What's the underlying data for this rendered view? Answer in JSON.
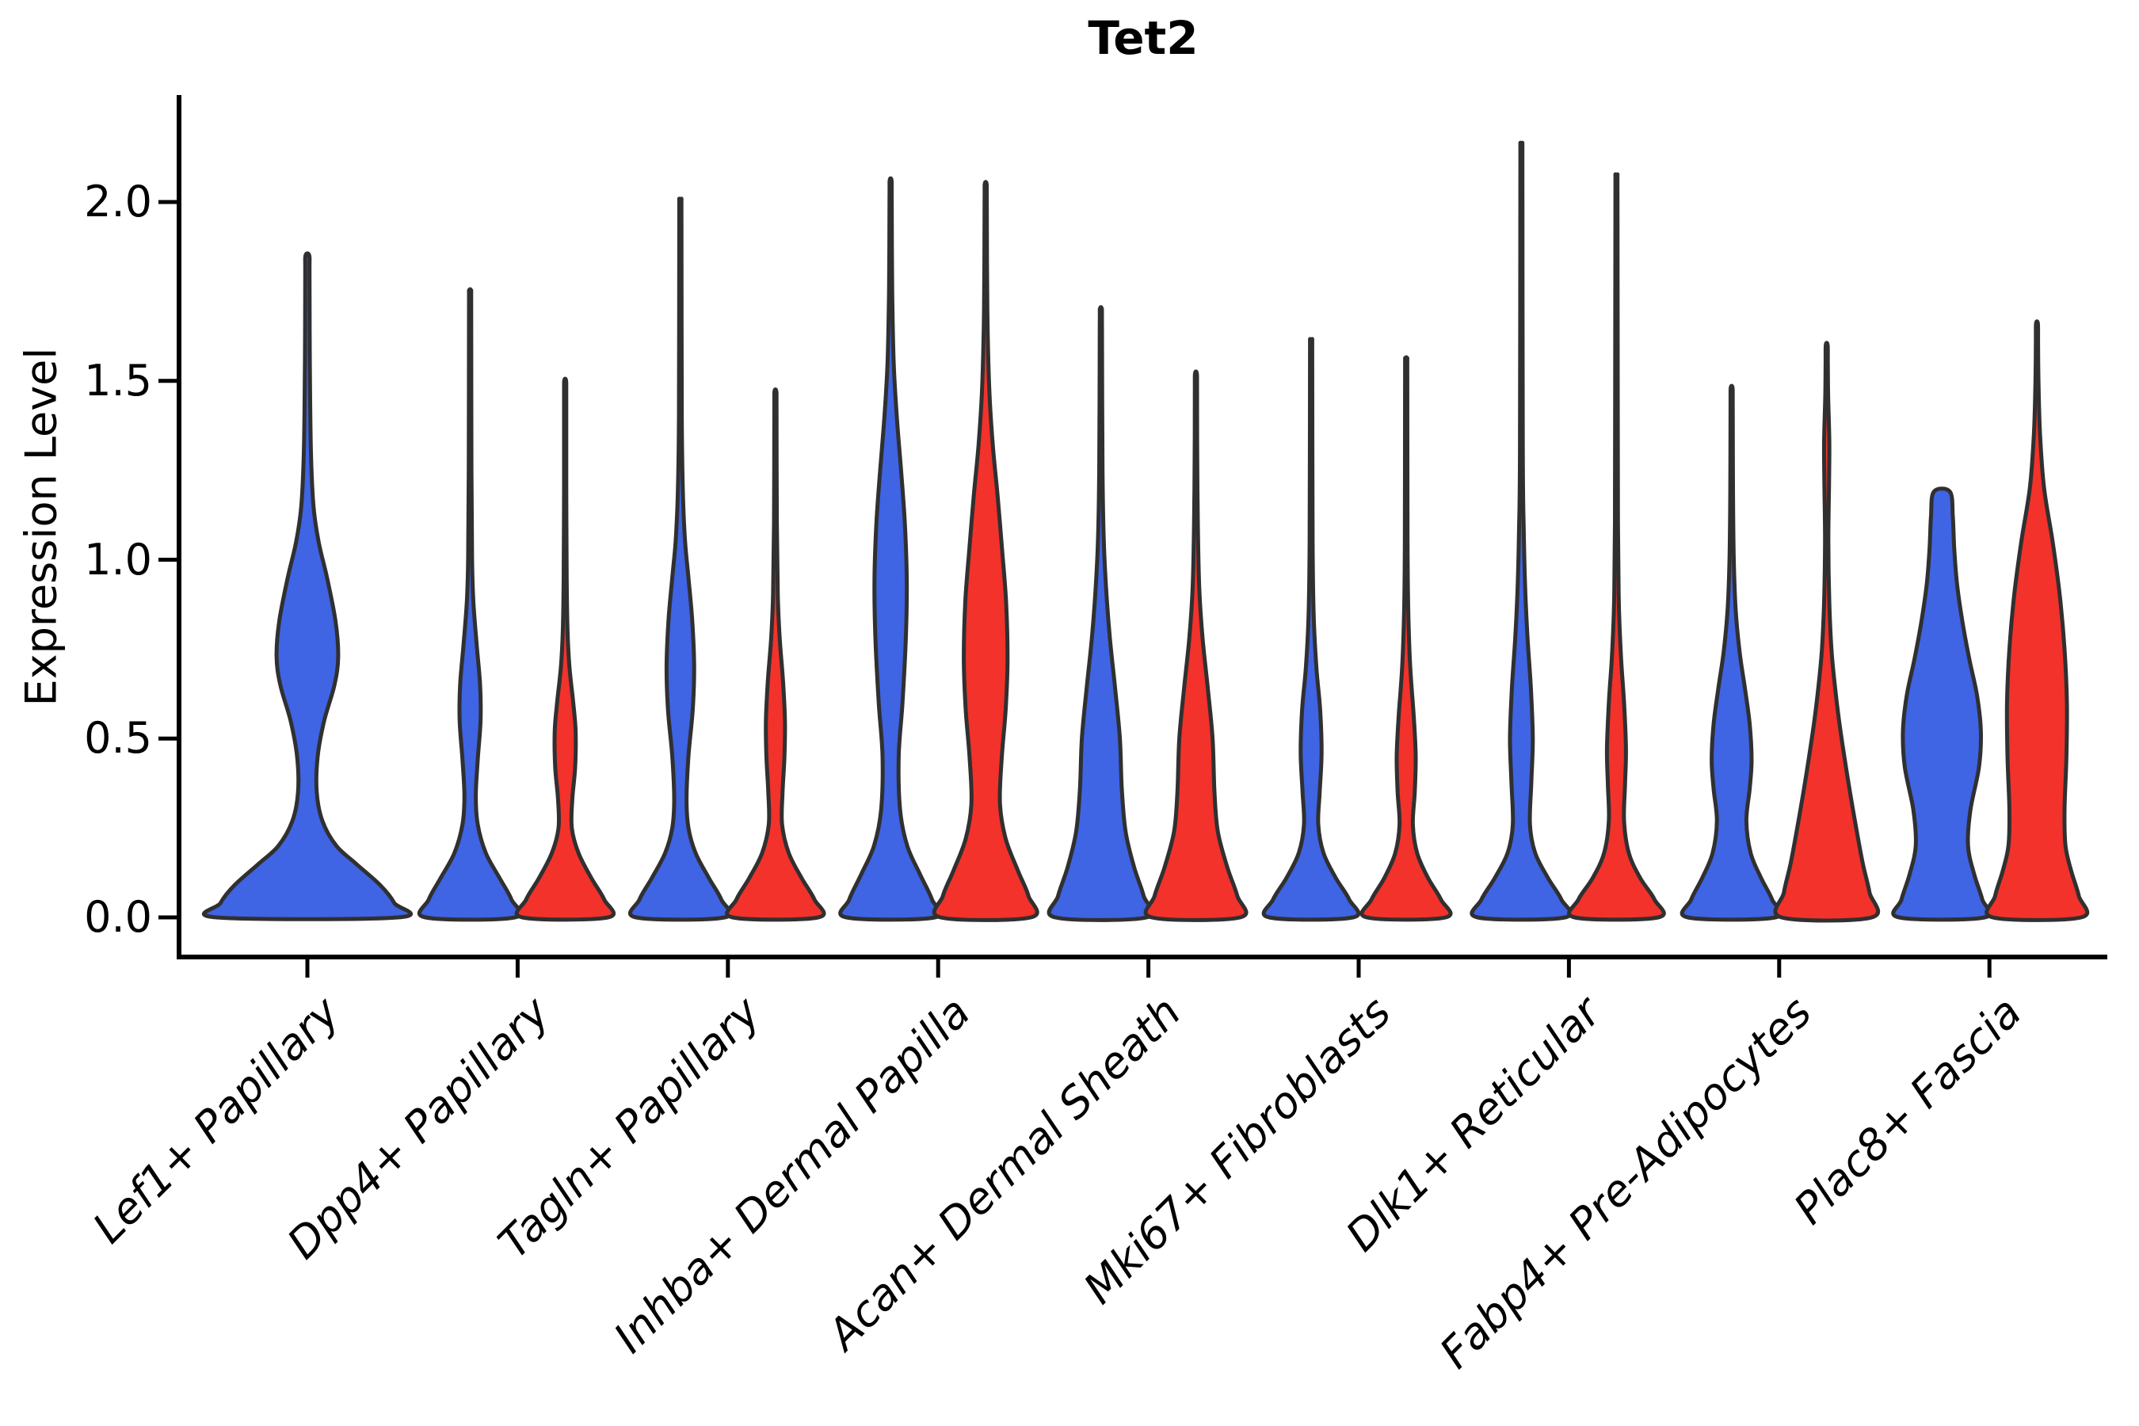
{
  "chart_data": {
    "type": "violin",
    "title": "Tet2",
    "xlabel": "",
    "ylabel": "Expression Level",
    "ylim": [
      -0.11,
      2.3
    ],
    "yticks": [
      "0.0",
      "0.5",
      "1.0",
      "1.5",
      "2.0"
    ],
    "ytick_values": [
      0.0,
      0.5,
      1.0,
      1.5,
      2.0
    ],
    "grid": "off",
    "legend_position": "none",
    "categories": [
      "Lef1+ Papillary",
      "Dpp4+ Papillary",
      "Tagln+ Papillary",
      "Inhba+ Dermal Papilla",
      "Acan+ Dermal Sheath",
      "Mki67+ Fibroblasts",
      "Dlk1+ Reticular",
      "Fabp4+ Pre-Adipocytes",
      "Plac8+ Fascia"
    ],
    "series": [
      {
        "key": "blue",
        "color": "#3F64E4"
      },
      {
        "key": "red",
        "color": "#F2322B"
      }
    ],
    "outline_color": "#303030",
    "violins": [
      {
        "category_index": 0,
        "category": "Lef1+ Papillary",
        "series": "blue",
        "position": "single",
        "max_expression": 1.85,
        "profile": [
          [
            0,
            0.97
          ],
          [
            0.04,
            0.93
          ],
          [
            0.09,
            0.78
          ],
          [
            0.15,
            0.52
          ],
          [
            0.2,
            0.31
          ],
          [
            0.27,
            0.16
          ],
          [
            0.35,
            0.1
          ],
          [
            0.45,
            0.11
          ],
          [
            0.55,
            0.18
          ],
          [
            0.65,
            0.29
          ],
          [
            0.73,
            0.33
          ],
          [
            0.83,
            0.3
          ],
          [
            0.95,
            0.21
          ],
          [
            1.05,
            0.12
          ],
          [
            1.15,
            0.065
          ],
          [
            1.3,
            0.038
          ],
          [
            1.55,
            0.026
          ],
          [
            1.85,
            0.02
          ]
        ]
      },
      {
        "category_index": 1,
        "category": "Dpp4+ Papillary",
        "series": "blue",
        "position": "left",
        "max_expression": 1.75,
        "profile": [
          [
            0,
            0.94
          ],
          [
            0.05,
            0.87
          ],
          [
            0.11,
            0.62
          ],
          [
            0.18,
            0.33
          ],
          [
            0.26,
            0.16
          ],
          [
            0.34,
            0.12
          ],
          [
            0.44,
            0.16
          ],
          [
            0.55,
            0.22
          ],
          [
            0.65,
            0.21
          ],
          [
            0.76,
            0.14
          ],
          [
            0.88,
            0.07
          ],
          [
            1.0,
            0.042
          ],
          [
            1.25,
            0.028
          ],
          [
            1.75,
            0.02
          ]
        ]
      },
      {
        "category_index": 1,
        "category": "Dpp4+ Papillary",
        "series": "red",
        "position": "right",
        "max_expression": 1.5,
        "profile": [
          [
            0,
            0.9
          ],
          [
            0.05,
            0.82
          ],
          [
            0.11,
            0.55
          ],
          [
            0.18,
            0.28
          ],
          [
            0.25,
            0.14
          ],
          [
            0.33,
            0.15
          ],
          [
            0.42,
            0.21
          ],
          [
            0.52,
            0.22
          ],
          [
            0.6,
            0.17
          ],
          [
            0.7,
            0.09
          ],
          [
            0.8,
            0.05
          ],
          [
            0.95,
            0.032
          ],
          [
            1.2,
            0.024
          ],
          [
            1.5,
            0.02
          ]
        ]
      },
      {
        "category_index": 2,
        "category": "Tagln+ Papillary",
        "series": "blue",
        "position": "left",
        "max_expression": 2.0,
        "profile": [
          [
            0,
            0.93
          ],
          [
            0.05,
            0.86
          ],
          [
            0.11,
            0.6
          ],
          [
            0.18,
            0.32
          ],
          [
            0.25,
            0.17
          ],
          [
            0.33,
            0.13
          ],
          [
            0.45,
            0.17
          ],
          [
            0.58,
            0.26
          ],
          [
            0.7,
            0.29
          ],
          [
            0.83,
            0.25
          ],
          [
            0.95,
            0.17
          ],
          [
            1.05,
            0.1
          ],
          [
            1.18,
            0.055
          ],
          [
            1.4,
            0.03
          ],
          [
            2.0,
            0.02
          ]
        ]
      },
      {
        "category_index": 2,
        "category": "Tagln+ Papillary",
        "series": "red",
        "position": "right",
        "max_expression": 1.47,
        "profile": [
          [
            0,
            0.9
          ],
          [
            0.05,
            0.82
          ],
          [
            0.11,
            0.55
          ],
          [
            0.18,
            0.28
          ],
          [
            0.26,
            0.14
          ],
          [
            0.35,
            0.15
          ],
          [
            0.45,
            0.19
          ],
          [
            0.55,
            0.2
          ],
          [
            0.66,
            0.16
          ],
          [
            0.78,
            0.09
          ],
          [
            0.9,
            0.05
          ],
          [
            1.1,
            0.03
          ],
          [
            1.47,
            0.02
          ]
        ]
      },
      {
        "category_index": 3,
        "category": "Inhba+ Dermal Papilla",
        "series": "blue",
        "position": "left",
        "max_expression": 2.06,
        "profile": [
          [
            0,
            0.93
          ],
          [
            0.05,
            0.87
          ],
          [
            0.12,
            0.62
          ],
          [
            0.2,
            0.35
          ],
          [
            0.3,
            0.2
          ],
          [
            0.45,
            0.17
          ],
          [
            0.6,
            0.25
          ],
          [
            0.78,
            0.32
          ],
          [
            0.94,
            0.34
          ],
          [
            1.1,
            0.3
          ],
          [
            1.25,
            0.22
          ],
          [
            1.4,
            0.13
          ],
          [
            1.55,
            0.065
          ],
          [
            1.75,
            0.034
          ],
          [
            2.06,
            0.02
          ]
        ]
      },
      {
        "category_index": 3,
        "category": "Inhba+ Dermal Papilla",
        "series": "red",
        "position": "right",
        "max_expression": 2.05,
        "profile": [
          [
            0,
            0.95
          ],
          [
            0.06,
            0.9
          ],
          [
            0.13,
            0.68
          ],
          [
            0.22,
            0.42
          ],
          [
            0.32,
            0.3
          ],
          [
            0.45,
            0.34
          ],
          [
            0.58,
            0.42
          ],
          [
            0.72,
            0.46
          ],
          [
            0.88,
            0.43
          ],
          [
            1.02,
            0.35
          ],
          [
            1.18,
            0.25
          ],
          [
            1.32,
            0.15
          ],
          [
            1.48,
            0.075
          ],
          [
            1.7,
            0.035
          ],
          [
            2.05,
            0.02
          ]
        ]
      },
      {
        "category_index": 4,
        "category": "Acan+ Dermal Sheath",
        "series": "blue",
        "position": "left",
        "max_expression": 1.7,
        "profile": [
          [
            0,
            0.96
          ],
          [
            0.06,
            0.9
          ],
          [
            0.14,
            0.7
          ],
          [
            0.24,
            0.52
          ],
          [
            0.36,
            0.44
          ],
          [
            0.5,
            0.4
          ],
          [
            0.64,
            0.3
          ],
          [
            0.78,
            0.19
          ],
          [
            0.92,
            0.11
          ],
          [
            1.06,
            0.06
          ],
          [
            1.25,
            0.035
          ],
          [
            1.7,
            0.02
          ]
        ]
      },
      {
        "category_index": 4,
        "category": "Acan+ Dermal Sheath",
        "series": "red",
        "position": "right",
        "max_expression": 1.52,
        "profile": [
          [
            0,
            0.93
          ],
          [
            0.06,
            0.87
          ],
          [
            0.14,
            0.66
          ],
          [
            0.24,
            0.46
          ],
          [
            0.35,
            0.39
          ],
          [
            0.5,
            0.35
          ],
          [
            0.64,
            0.25
          ],
          [
            0.78,
            0.14
          ],
          [
            0.92,
            0.07
          ],
          [
            1.1,
            0.04
          ],
          [
            1.3,
            0.026
          ],
          [
            1.52,
            0.02
          ]
        ]
      },
      {
        "category_index": 5,
        "category": "Mki67+ Fibroblasts",
        "series": "blue",
        "position": "left",
        "max_expression": 1.61,
        "profile": [
          [
            0,
            0.88
          ],
          [
            0.05,
            0.8
          ],
          [
            0.11,
            0.52
          ],
          [
            0.18,
            0.26
          ],
          [
            0.26,
            0.15
          ],
          [
            0.35,
            0.18
          ],
          [
            0.46,
            0.22
          ],
          [
            0.58,
            0.19
          ],
          [
            0.7,
            0.11
          ],
          [
            0.84,
            0.055
          ],
          [
            1.05,
            0.032
          ],
          [
            1.61,
            0.02
          ]
        ]
      },
      {
        "category_index": 5,
        "category": "Mki67+ Fibroblasts",
        "series": "red",
        "position": "right",
        "max_expression": 1.56,
        "profile": [
          [
            0,
            0.83
          ],
          [
            0.05,
            0.73
          ],
          [
            0.11,
            0.46
          ],
          [
            0.18,
            0.23
          ],
          [
            0.26,
            0.14
          ],
          [
            0.35,
            0.18
          ],
          [
            0.45,
            0.2
          ],
          [
            0.56,
            0.16
          ],
          [
            0.7,
            0.085
          ],
          [
            0.85,
            0.045
          ],
          [
            1.05,
            0.028
          ],
          [
            1.56,
            0.02
          ]
        ]
      },
      {
        "category_index": 6,
        "category": "Dlk1+ Reticular",
        "series": "blue",
        "position": "left",
        "max_expression": 2.14,
        "profile": [
          [
            0,
            0.92
          ],
          [
            0.05,
            0.84
          ],
          [
            0.11,
            0.56
          ],
          [
            0.18,
            0.29
          ],
          [
            0.26,
            0.18
          ],
          [
            0.38,
            0.21
          ],
          [
            0.5,
            0.24
          ],
          [
            0.64,
            0.2
          ],
          [
            0.78,
            0.13
          ],
          [
            0.92,
            0.08
          ],
          [
            1.08,
            0.05
          ],
          [
            1.3,
            0.03
          ],
          [
            2.14,
            0.018
          ]
        ]
      },
      {
        "category_index": 6,
        "category": "Dlk1+ Reticular",
        "series": "red",
        "position": "right",
        "max_expression": 2.07,
        "profile": [
          [
            0,
            0.88
          ],
          [
            0.05,
            0.8
          ],
          [
            0.11,
            0.5
          ],
          [
            0.18,
            0.26
          ],
          [
            0.27,
            0.16
          ],
          [
            0.37,
            0.18
          ],
          [
            0.47,
            0.2
          ],
          [
            0.6,
            0.16
          ],
          [
            0.73,
            0.095
          ],
          [
            0.88,
            0.05
          ],
          [
            1.1,
            0.032
          ],
          [
            1.5,
            0.026
          ],
          [
            2.07,
            0.018
          ]
        ]
      },
      {
        "category_index": 7,
        "category": "Fabp4+ Pre-Adipocytes",
        "series": "blue",
        "position": "left",
        "max_expression": 1.48,
        "profile": [
          [
            0,
            0.92
          ],
          [
            0.05,
            0.85
          ],
          [
            0.11,
            0.62
          ],
          [
            0.18,
            0.4
          ],
          [
            0.27,
            0.31
          ],
          [
            0.36,
            0.38
          ],
          [
            0.44,
            0.42
          ],
          [
            0.54,
            0.38
          ],
          [
            0.64,
            0.28
          ],
          [
            0.74,
            0.17
          ],
          [
            0.86,
            0.085
          ],
          [
            1.0,
            0.045
          ],
          [
            1.2,
            0.028
          ],
          [
            1.48,
            0.02
          ]
        ]
      },
      {
        "category_index": 7,
        "category": "Fabp4+ Pre-Adipocytes",
        "series": "red",
        "position": "right",
        "max_expression": 1.6,
        "profile": [
          [
            0,
            0.95
          ],
          [
            0.07,
            0.9
          ],
          [
            0.15,
            0.76
          ],
          [
            0.25,
            0.62
          ],
          [
            0.35,
            0.49
          ],
          [
            0.45,
            0.37
          ],
          [
            0.55,
            0.26
          ],
          [
            0.65,
            0.17
          ],
          [
            0.75,
            0.1
          ],
          [
            0.88,
            0.055
          ],
          [
            1.05,
            0.035
          ],
          [
            1.22,
            0.05
          ],
          [
            1.33,
            0.055
          ],
          [
            1.46,
            0.03
          ],
          [
            1.6,
            0.02
          ]
        ]
      },
      {
        "category_index": 8,
        "category": "Plac8+ Fascia",
        "series": "blue",
        "position": "left",
        "max_expression": 1.19,
        "profile": [
          [
            0,
            0.9
          ],
          [
            0.05,
            0.85
          ],
          [
            0.12,
            0.68
          ],
          [
            0.2,
            0.55
          ],
          [
            0.3,
            0.6
          ],
          [
            0.42,
            0.78
          ],
          [
            0.52,
            0.82
          ],
          [
            0.62,
            0.74
          ],
          [
            0.72,
            0.58
          ],
          [
            0.82,
            0.44
          ],
          [
            0.93,
            0.32
          ],
          [
            1.03,
            0.26
          ],
          [
            1.12,
            0.23
          ],
          [
            1.19,
            0.17
          ]
        ]
      },
      {
        "category_index": 8,
        "category": "Plac8+ Fascia",
        "series": "red",
        "position": "right",
        "max_expression": 1.66,
        "profile": [
          [
            0,
            0.93
          ],
          [
            0.06,
            0.88
          ],
          [
            0.13,
            0.72
          ],
          [
            0.2,
            0.6
          ],
          [
            0.3,
            0.58
          ],
          [
            0.45,
            0.62
          ],
          [
            0.6,
            0.63
          ],
          [
            0.75,
            0.58
          ],
          [
            0.9,
            0.48
          ],
          [
            1.05,
            0.33
          ],
          [
            1.2,
            0.15
          ],
          [
            1.35,
            0.065
          ],
          [
            1.5,
            0.032
          ],
          [
            1.66,
            0.02
          ]
        ]
      }
    ]
  }
}
